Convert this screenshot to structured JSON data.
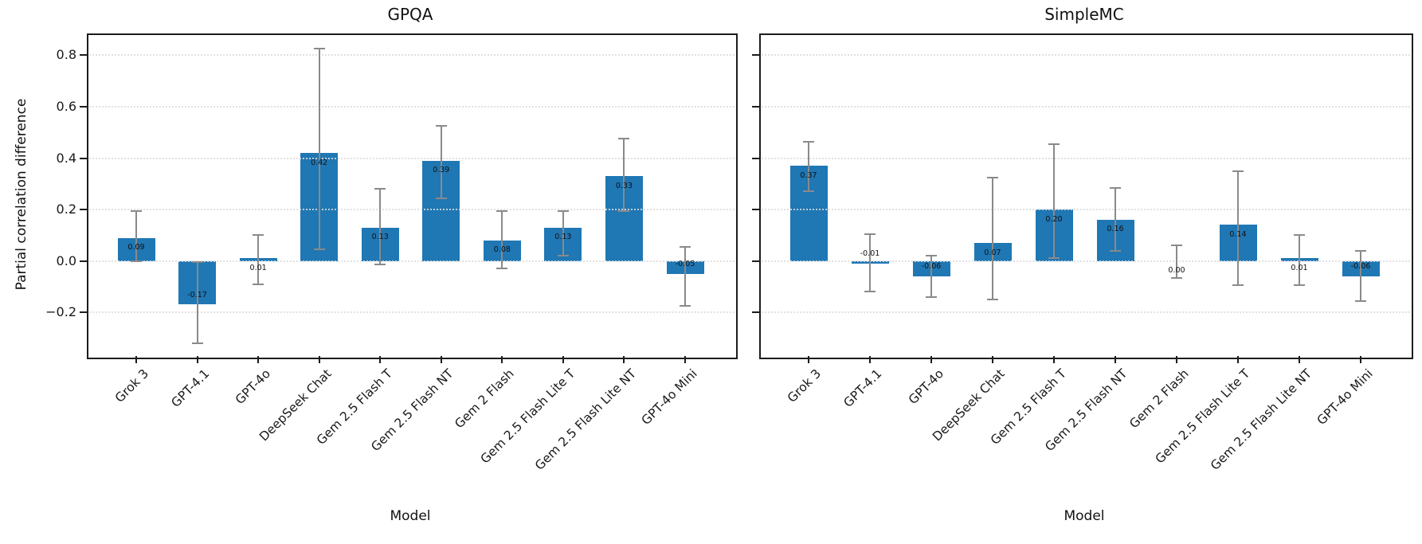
{
  "figure": {
    "background": "#ffffff"
  },
  "shared": {
    "ylabel": "Partial correlation difference",
    "xlabel": "Model",
    "categories": [
      "Grok 3",
      "GPT-4.1",
      "GPT-4o",
      "DeepSeek Chat",
      "Gem 2.5 Flash T",
      "Gem 2.5 Flash NT",
      "Gem 2 Flash",
      "Gem 2.5 Flash Lite T",
      "Gem 2.5 Flash Lite NT",
      "GPT-4o Mini"
    ],
    "yticks": [
      {
        "value": 0.8,
        "label": "0.8"
      },
      {
        "value": 0.6,
        "label": "0.6"
      },
      {
        "value": 0.4,
        "label": "0.4"
      },
      {
        "value": 0.2,
        "label": "0.2"
      },
      {
        "value": 0.0,
        "label": "0.0"
      },
      {
        "value": -0.2,
        "label": "−0.2"
      }
    ],
    "colors": {
      "bar": "#1f77b4",
      "error_bar": "#8a8a8a",
      "grid": "#dcdcdc",
      "spine": "#1c1c1c",
      "text": "#111111"
    }
  },
  "chart_data": [
    {
      "type": "bar",
      "title": "GPQA",
      "xlabel": "Model",
      "ylabel": "Partial correlation difference",
      "grid": "horizontal-dotted",
      "legend": null,
      "ylim": [
        -0.37,
        0.885
      ],
      "show_ytick_labels": true,
      "categories": [
        "Grok 3",
        "GPT-4.1",
        "GPT-4o",
        "DeepSeek Chat",
        "Gem 2.5 Flash T",
        "Gem 2.5 Flash NT",
        "Gem 2 Flash",
        "Gem 2.5 Flash Lite T",
        "Gem 2.5 Flash Lite NT",
        "GPT-4o Mini"
      ],
      "values": [
        0.09,
        -0.17,
        0.01,
        0.42,
        0.13,
        0.39,
        0.08,
        0.13,
        0.33,
        -0.05
      ],
      "bar_labels": [
        "0.09",
        "-0.17",
        "0.01",
        "0.42",
        "0.13",
        "0.39",
        "0.08",
        "0.13",
        "0.33",
        "-0.05"
      ],
      "error_low": [
        0.0,
        -0.32,
        -0.09,
        0.045,
        -0.015,
        0.245,
        -0.03,
        0.02,
        0.195,
        -0.175
      ],
      "error_high": [
        0.195,
        -0.005,
        0.1,
        0.825,
        0.28,
        0.525,
        0.195,
        0.195,
        0.475,
        0.055
      ]
    },
    {
      "type": "bar",
      "title": "SimpleMC",
      "xlabel": "Model",
      "ylabel": "Partial correlation difference",
      "grid": "horizontal-dotted",
      "legend": null,
      "ylim": [
        -0.37,
        0.885
      ],
      "show_ytick_labels": false,
      "categories": [
        "Grok 3",
        "GPT-4.1",
        "GPT-4o",
        "DeepSeek Chat",
        "Gem 2.5 Flash T",
        "Gem 2.5 Flash NT",
        "Gem 2 Flash",
        "Gem 2.5 Flash Lite T",
        "Gem 2.5 Flash Lite NT",
        "GPT-4o Mini"
      ],
      "values": [
        0.37,
        -0.01,
        -0.06,
        0.07,
        0.2,
        0.16,
        0.0,
        0.14,
        0.01,
        -0.06
      ],
      "bar_labels": [
        "0.37",
        "-0.01",
        "-0.06",
        "0.07",
        "0.20",
        "0.16",
        "0.00",
        "0.14",
        "0.01",
        "-0.06"
      ],
      "error_low": [
        0.27,
        -0.12,
        -0.14,
        -0.15,
        0.01,
        0.04,
        -0.065,
        -0.095,
        -0.095,
        -0.155
      ],
      "error_high": [
        0.465,
        0.105,
        0.02,
        0.325,
        0.455,
        0.285,
        0.06,
        0.35,
        0.1,
        0.04
      ]
    }
  ]
}
